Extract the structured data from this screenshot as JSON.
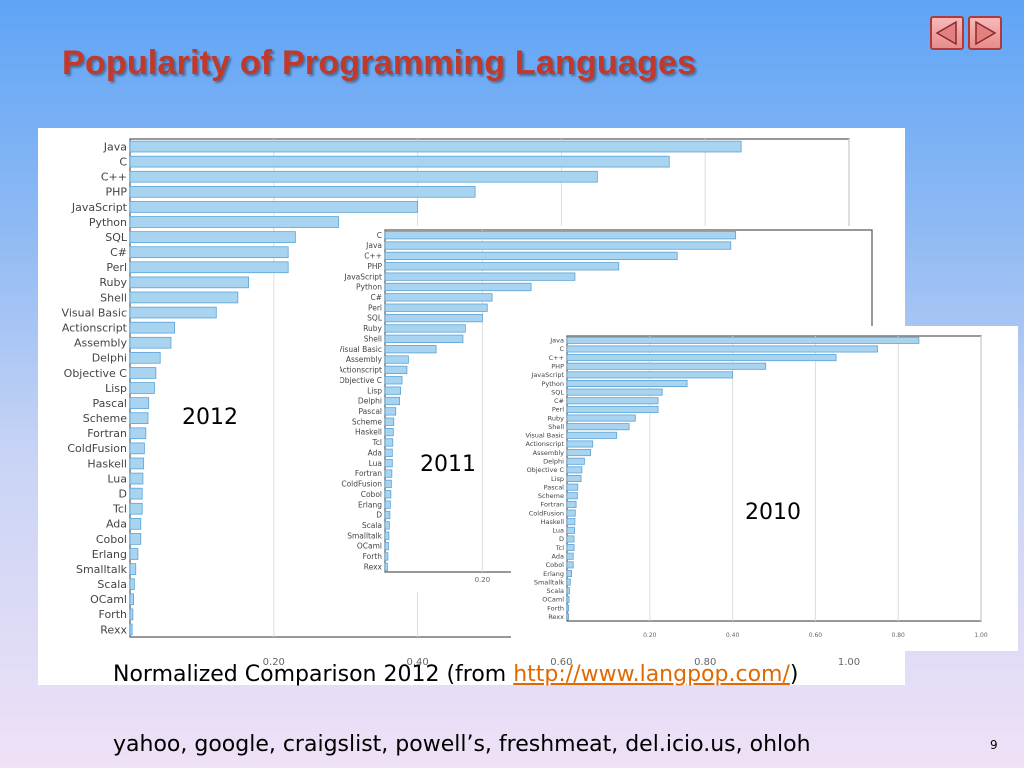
{
  "slide": {
    "title": "Popularity of Programming Languages",
    "caption_prefix": "Normalized Comparison  2012 (from ",
    "caption_link": "http://www.langpop.com/",
    "caption_suffix": ")",
    "sources": "yahoo, google, craigslist, powell’s, freshmeat, del.icio.us, ohloh",
    "page_number": "9"
  },
  "nav": {
    "prev_icon": "triangle-left-icon",
    "next_icon": "triangle-right-icon",
    "button_fill": "#f4a9a9",
    "button_border": "#b03a3a"
  },
  "colors": {
    "bar_fill": "#a8d4f0",
    "bar_stroke": "#5aa3d8",
    "title": "#c0392b",
    "link": "#e06a00"
  },
  "chart_data": [
    {
      "type": "bar",
      "orientation": "horizontal",
      "year_label": "2012",
      "categories": [
        "Java",
        "C",
        "C++",
        "PHP",
        "JavaScript",
        "Python",
        "SQL",
        "C#",
        "Perl",
        "Ruby",
        "Shell",
        "Visual Basic",
        "Actionscript",
        "Assembly",
        "Delphi",
        "Objective C",
        "Lisp",
        "Pascal",
        "Scheme",
        "Fortran",
        "ColdFusion",
        "Haskell",
        "Lua",
        "D",
        "Tcl",
        "Ada",
        "Cobol",
        "Erlang",
        "Smalltalk",
        "Scala",
        "OCaml",
        "Forth",
        "Rexx"
      ],
      "values": [
        0.85,
        0.75,
        0.65,
        0.48,
        0.4,
        0.29,
        0.23,
        0.22,
        0.22,
        0.165,
        0.15,
        0.12,
        0.062,
        0.057,
        0.042,
        0.036,
        0.034,
        0.026,
        0.025,
        0.022,
        0.02,
        0.019,
        0.018,
        0.017,
        0.017,
        0.015,
        0.015,
        0.011,
        0.008,
        0.006,
        0.005,
        0.004,
        0.003
      ],
      "xlim": [
        0,
        1.0
      ],
      "xticks": [
        "0.20",
        "0.40",
        "0.60",
        "0.80",
        "1.00"
      ],
      "grid": true
    },
    {
      "type": "bar",
      "orientation": "horizontal",
      "year_label": "2011",
      "categories": [
        "C",
        "Java",
        "C++",
        "PHP",
        "JavaScript",
        "Python",
        "C#",
        "Perl",
        "SQL",
        "Ruby",
        "Shell",
        "Visual Basic",
        "Assembly",
        "Actionscript",
        "Objective C",
        "Lisp",
        "Delphi",
        "Pascal",
        "Scheme",
        "Haskell",
        "Tcl",
        "Ada",
        "Lua",
        "Fortran",
        "ColdFusion",
        "Cobol",
        "Erlang",
        "D",
        "Scala",
        "Smalltalk",
        "OCaml",
        "Forth",
        "Rexx"
      ],
      "values": [
        0.72,
        0.71,
        0.6,
        0.48,
        0.39,
        0.3,
        0.22,
        0.21,
        0.2,
        0.165,
        0.16,
        0.105,
        0.048,
        0.045,
        0.035,
        0.032,
        0.03,
        0.022,
        0.018,
        0.017,
        0.016,
        0.015,
        0.015,
        0.014,
        0.013,
        0.012,
        0.011,
        0.01,
        0.009,
        0.008,
        0.007,
        0.006,
        0.005
      ],
      "xlim": [
        0,
        1.0
      ],
      "xticks": [
        "0.20"
      ],
      "grid": true
    },
    {
      "type": "bar",
      "orientation": "horizontal",
      "year_label": "2010",
      "categories": [
        "Java",
        "C",
        "C++",
        "PHP",
        "JavaScript",
        "Python",
        "SQL",
        "C#",
        "Perl",
        "Ruby",
        "Shell",
        "Visual Basic",
        "Actionscript",
        "Assembly",
        "Delphi",
        "Objective C",
        "Lisp",
        "Pascal",
        "Scheme",
        "Fortran",
        "ColdFusion",
        "Haskell",
        "Lua",
        "D",
        "Tcl",
        "Ada",
        "Cobol",
        "Erlang",
        "Smalltalk",
        "Scala",
        "OCaml",
        "Forth",
        "Rexx"
      ],
      "values": [
        0.85,
        0.75,
        0.65,
        0.48,
        0.4,
        0.29,
        0.23,
        0.22,
        0.22,
        0.165,
        0.15,
        0.12,
        0.062,
        0.057,
        0.042,
        0.036,
        0.034,
        0.026,
        0.025,
        0.022,
        0.02,
        0.019,
        0.018,
        0.017,
        0.017,
        0.015,
        0.015,
        0.011,
        0.008,
        0.006,
        0.005,
        0.004,
        0.003
      ],
      "xlim": [
        0,
        1.0
      ],
      "xticks": [
        "0.20",
        "0.40",
        "0.60",
        "0.80",
        "1.00"
      ],
      "grid": true
    }
  ]
}
